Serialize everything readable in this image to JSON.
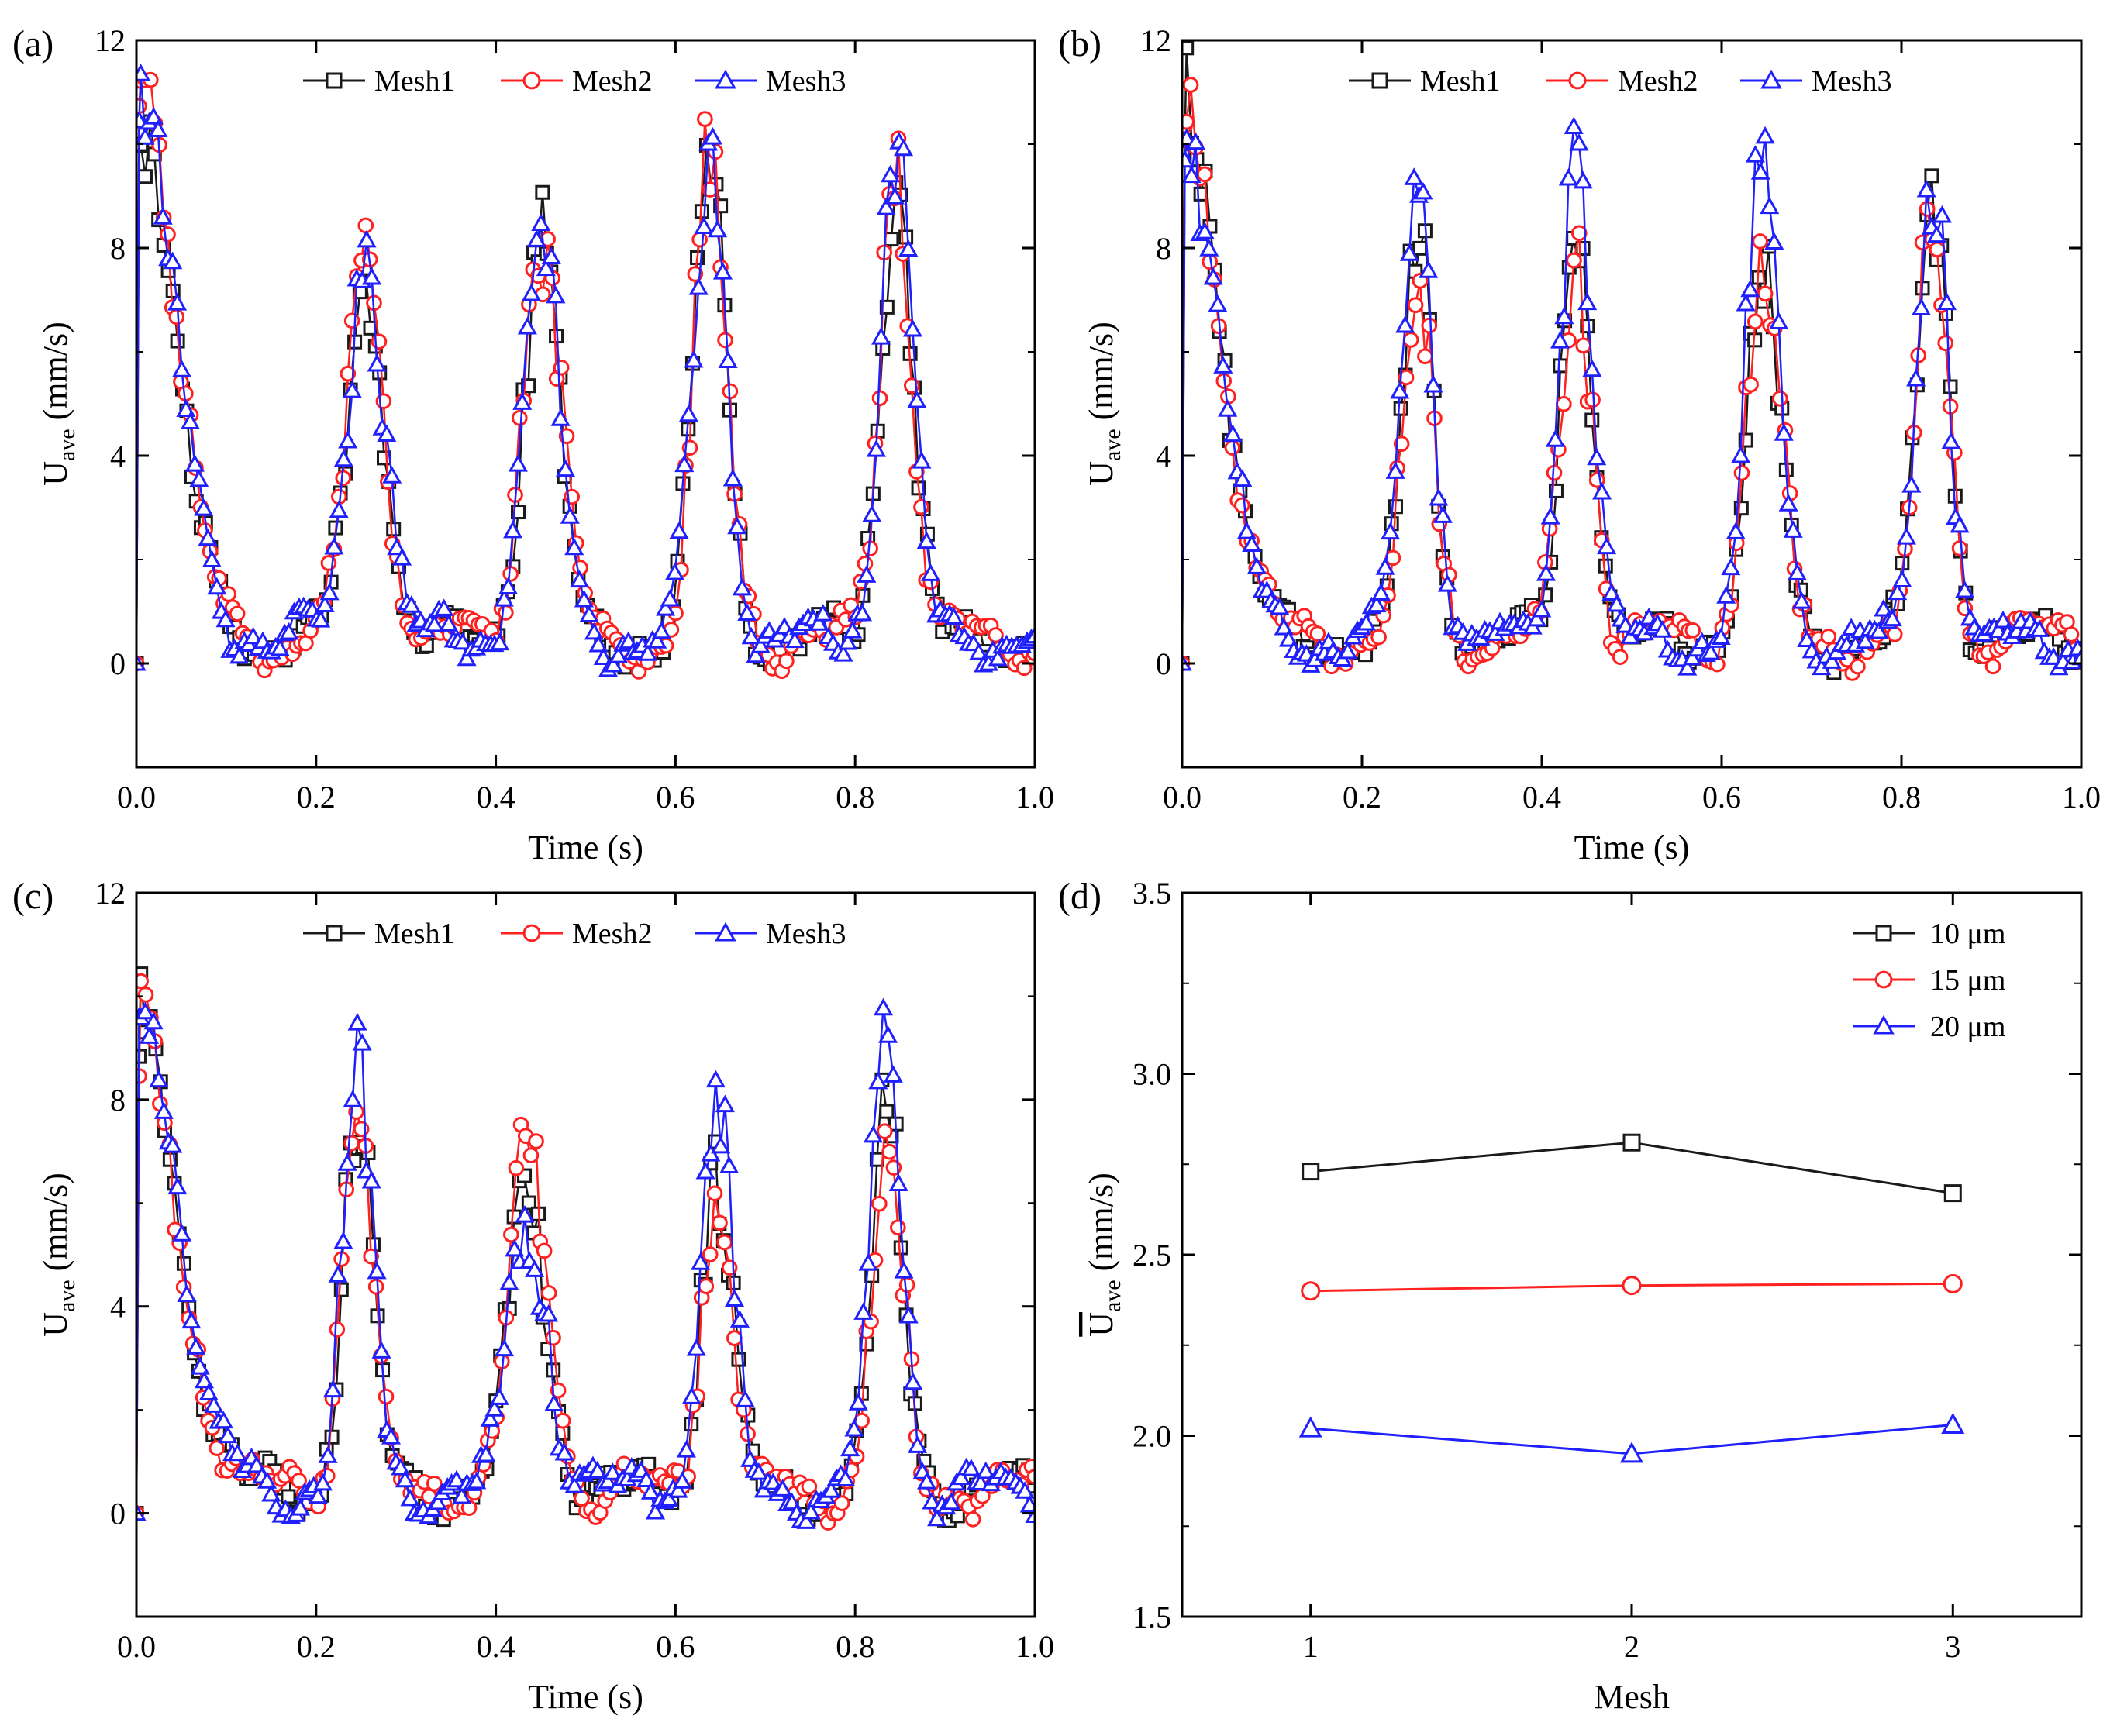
{
  "chart_data": [
    {
      "type": "line",
      "panel_label": "(a)",
      "xlabel": "Time (s)",
      "ylabel": "U",
      "ylabel_sub": "ave",
      "ylabel_unit": "(mm/s)",
      "xlim": [
        0,
        1
      ],
      "ylim": [
        -2,
        12
      ],
      "xticks": [
        0,
        0.2,
        0.4,
        0.6,
        0.8,
        1
      ],
      "xtick_labels": [
        "0.0",
        "0.2",
        "0.4",
        "0.6",
        "0.8",
        "1.0"
      ],
      "yticks": [
        0,
        4,
        8,
        12
      ],
      "ytick_labels": [
        "0",
        "4",
        "8",
        "12"
      ],
      "legend_position": "top",
      "peaks": [
        {
          "t": 0.255,
          "w": 0.024,
          "a": [
            7.0,
            7.2,
            7.4
          ]
        },
        {
          "t": 0.45,
          "w": 0.024,
          "a": [
            7.6,
            8.0,
            7.8
          ]
        },
        {
          "t": 0.638,
          "w": 0.022,
          "a": [
            9.0,
            9.1,
            9.3
          ]
        },
        {
          "t": 0.845,
          "w": 0.021,
          "a": [
            8.8,
            9.2,
            9.5
          ]
        }
      ],
      "start": {
        "a": [
          10.5,
          11.3,
          11.0
        ],
        "w": 0.022
      },
      "series": [
        {
          "name": "Mesh1",
          "color": "#1a1a1a",
          "marker": "square",
          "seed": 11
        },
        {
          "name": "Mesh2",
          "color": "#ff2020",
          "marker": "circle",
          "seed": 23
        },
        {
          "name": "Mesh3",
          "color": "#2020ff",
          "marker": "triangle",
          "seed": 37
        }
      ]
    },
    {
      "type": "line",
      "panel_label": "(b)",
      "xlabel": "Time (s)",
      "ylabel": "U",
      "ylabel_sub": "ave",
      "ylabel_unit": "(mm/s)",
      "xlim": [
        0,
        1
      ],
      "ylim": [
        -2,
        12
      ],
      "xticks": [
        0,
        0.2,
        0.4,
        0.6,
        0.8,
        1
      ],
      "xtick_labels": [
        "0.0",
        "0.2",
        "0.4",
        "0.6",
        "0.8",
        "1.0"
      ],
      "yticks": [
        0,
        4,
        8,
        12
      ],
      "ytick_labels": [
        "0",
        "4",
        "8",
        "12"
      ],
      "legend_position": "top",
      "peaks": [
        {
          "t": 0.262,
          "w": 0.02,
          "a": [
            7.6,
            6.8,
            8.7
          ]
        },
        {
          "t": 0.438,
          "w": 0.02,
          "a": [
            8.3,
            7.3,
            9.5
          ]
        },
        {
          "t": 0.645,
          "w": 0.022,
          "a": [
            6.9,
            7.4,
            8.9
          ]
        },
        {
          "t": 0.835,
          "w": 0.02,
          "a": [
            8.5,
            8.3,
            9.1
          ]
        }
      ],
      "start": {
        "a": [
          10.6,
          10.9,
          10.2
        ],
        "w": 0.022
      },
      "series": [
        {
          "name": "Mesh1",
          "color": "#1a1a1a",
          "marker": "square",
          "seed": 41
        },
        {
          "name": "Mesh2",
          "color": "#ff2020",
          "marker": "circle",
          "seed": 53
        },
        {
          "name": "Mesh3",
          "color": "#2020ff",
          "marker": "triangle",
          "seed": 67
        }
      ]
    },
    {
      "type": "line",
      "panel_label": "(c)",
      "xlabel": "Time (s)",
      "ylabel": "U",
      "ylabel_sub": "ave",
      "ylabel_unit": "(mm/s)",
      "xlim": [
        0,
        1
      ],
      "ylim": [
        -2,
        12
      ],
      "xticks": [
        0,
        0.2,
        0.4,
        0.6,
        0.8,
        1
      ],
      "xtick_labels": [
        "0.0",
        "0.2",
        "0.4",
        "0.6",
        "0.8",
        "1.0"
      ],
      "yticks": [
        0,
        4,
        8,
        12
      ],
      "ytick_labels": [
        "0",
        "4",
        "8",
        "12"
      ],
      "legend_position": "top",
      "peaks": [
        {
          "t": 0.245,
          "w": 0.02,
          "a": [
            7.3,
            7.2,
            8.0
          ]
        },
        {
          "t": 0.435,
          "w": 0.026,
          "a": [
            5.4,
            6.2,
            5.2
          ]
        },
        {
          "t": 0.645,
          "w": 0.02,
          "a": [
            6.2,
            6.0,
            7.4
          ]
        },
        {
          "t": 0.835,
          "w": 0.02,
          "a": [
            7.5,
            6.8,
            9.0
          ]
        }
      ],
      "start": {
        "a": [
          9.3,
          8.9,
          10.1
        ],
        "w": 0.024
      },
      "series": [
        {
          "name": "Mesh1",
          "color": "#1a1a1a",
          "marker": "square",
          "seed": 71
        },
        {
          "name": "Mesh2",
          "color": "#ff2020",
          "marker": "circle",
          "seed": 83
        },
        {
          "name": "Mesh3",
          "color": "#2020ff",
          "marker": "triangle",
          "seed": 97
        }
      ]
    },
    {
      "type": "line",
      "panel_label": "(d)",
      "xlabel": "Mesh",
      "ylabel": "U",
      "ylabel_sub": "ave",
      "ylabel_unit": "(mm/s)",
      "ylabel_overline": true,
      "xlim": [
        0.6,
        3.4
      ],
      "ylim": [
        1.5,
        3.5
      ],
      "xticks": [
        1,
        2,
        3
      ],
      "xtick_labels": [
        "1",
        "2",
        "3"
      ],
      "yticks": [
        1.5,
        2.0,
        2.5,
        3.0,
        3.5
      ],
      "ytick_labels": [
        "1.5",
        "2.0",
        "2.5",
        "3.0",
        "3.5"
      ],
      "legend_position": "top-right",
      "x": [
        1,
        2,
        3
      ],
      "series": [
        {
          "name": "10 μm",
          "color": "#1a1a1a",
          "marker": "square",
          "values": [
            2.73,
            2.81,
            2.67
          ]
        },
        {
          "name": "15 μm",
          "color": "#ff2020",
          "marker": "circle",
          "values": [
            2.4,
            2.415,
            2.42
          ]
        },
        {
          "name": "20 μm",
          "color": "#2020ff",
          "marker": "triangle",
          "values": [
            2.02,
            1.95,
            2.03
          ]
        }
      ]
    }
  ]
}
